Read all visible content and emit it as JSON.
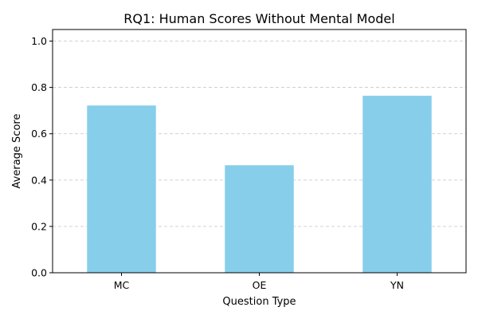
{
  "chart_data": {
    "type": "bar",
    "title": "RQ1: Human Scores Without Mental Model",
    "xlabel": "Question Type",
    "ylabel": "Average Score",
    "categories": [
      "MC",
      "OE",
      "YN"
    ],
    "values": [
      0.722,
      0.464,
      0.764
    ],
    "ylim": [
      0,
      1.05
    ],
    "yticks": [
      0.0,
      0.2,
      0.4,
      0.6,
      0.8,
      1.0
    ],
    "ytick_labels": [
      "0.0",
      "0.2",
      "0.4",
      "0.6",
      "0.8",
      "1.0"
    ],
    "grid": "y-dashed",
    "bar_color": "#87CEEB"
  }
}
